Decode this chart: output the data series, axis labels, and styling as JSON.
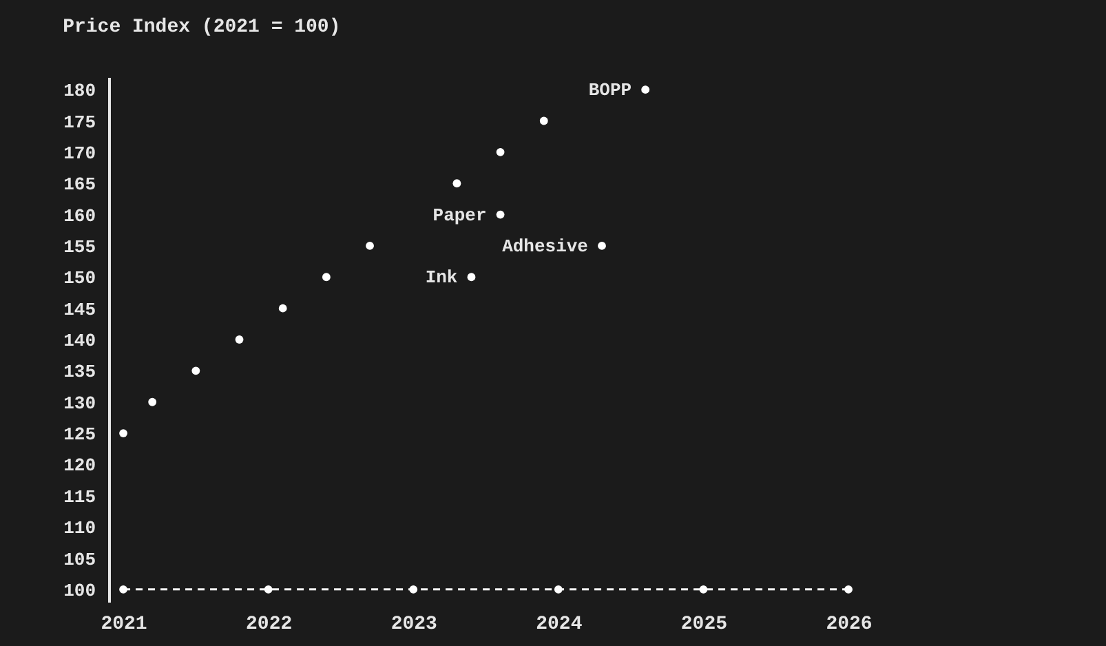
{
  "chart_data": {
    "type": "scatter",
    "title": "Price Index (2021 = 100)",
    "xlim": [
      2020.9,
      2026
    ],
    "ylim": [
      98,
      182
    ],
    "xticks": [
      2021,
      2022,
      2023,
      2024,
      2025,
      2026
    ],
    "yticks": [
      100,
      105,
      110,
      115,
      120,
      125,
      130,
      135,
      140,
      145,
      150,
      155,
      160,
      165,
      170,
      175,
      180
    ],
    "grid": false,
    "marker": "circle",
    "series": [
      {
        "color": "#ffffff",
        "x": [
          2021.0,
          2021.2,
          2021.5,
          2021.8,
          2022.1,
          2022.4,
          2022.7,
          2023.3,
          2023.6,
          2023.9
        ],
        "values": [
          125,
          130,
          135,
          140,
          145,
          150,
          155,
          165,
          170,
          175
        ]
      },
      {
        "name": "BOPP",
        "color": "#ffffff",
        "x": [
          2024.6
        ],
        "values": [
          180
        ]
      },
      {
        "name": "Paper",
        "color": "#ffffff",
        "x": [
          2023.6
        ],
        "values": [
          160
        ]
      },
      {
        "name": "Adhesive",
        "color": "#ffffff",
        "x": [
          2024.3
        ],
        "values": [
          155
        ]
      },
      {
        "name": "Ink",
        "color": "#ffffff",
        "x": [
          2023.4
        ],
        "values": [
          150
        ]
      },
      {
        "type": "line",
        "line_style": "dashed",
        "color": "#ffffff",
        "x": [
          2021,
          2022,
          2023,
          2024,
          2025,
          2026
        ],
        "values": [
          100,
          100,
          100,
          100,
          100,
          100
        ]
      }
    ]
  }
}
